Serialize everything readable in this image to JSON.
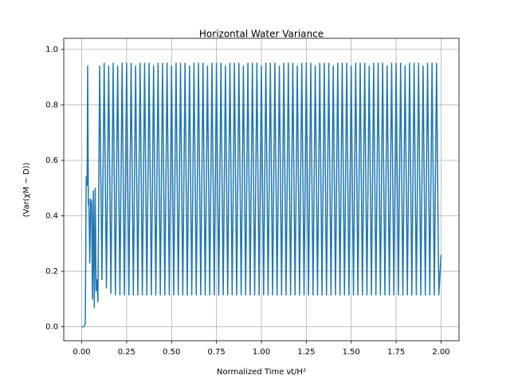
{
  "chart_data": {
    "type": "line",
    "title": "Horizontal Water Variance",
    "x_label": "Normalized Time νt/H²",
    "y_label": "⟨Var(χM − D)⟩",
    "color": "#1f77b4",
    "grid": true,
    "xlim": [
      -0.1,
      2.1
    ],
    "ylim": [
      -0.05,
      1.04
    ],
    "xticks": [
      {
        "value": 0,
        "label": "0.00"
      },
      {
        "value": 0.25,
        "label": "0.25"
      },
      {
        "value": 0.5,
        "label": "0.50"
      },
      {
        "value": 0.75,
        "label": "0.75"
      },
      {
        "value": 1,
        "label": "1.00"
      },
      {
        "value": 1.25,
        "label": "1.25"
      },
      {
        "value": 1.5,
        "label": "1.50"
      },
      {
        "value": 1.75,
        "label": "1.75"
      },
      {
        "value": 2,
        "label": "2.00"
      }
    ],
    "yticks": [
      {
        "value": 0,
        "label": "0.0"
      },
      0.2,
      0.4,
      0.6,
      0.8,
      {
        "value": 1,
        "label": "1.0"
      }
    ],
    "x": [
      0,
      0.01,
      0.02,
      0.025,
      0.03,
      0.033,
      0.037,
      0.04,
      0.045,
      0.05,
      0.055,
      0.06,
      0.065,
      0.07,
      0.075,
      0.08,
      0.085,
      0.09,
      0.095,
      0.1,
      0.1125,
      0.125,
      0.1375,
      0.15,
      0.1625,
      0.175,
      0.1875,
      0.2,
      0.2125,
      0.225,
      0.2375,
      0.25,
      0.2625,
      0.275,
      0.2875,
      0.3,
      0.3125,
      0.325,
      0.3375,
      0.35,
      0.3625,
      0.375,
      0.3875,
      0.4,
      0.4125,
      0.425,
      0.4375,
      0.45,
      0.4625,
      0.475,
      0.4875,
      0.5,
      0.5125,
      0.525,
      0.5375,
      0.55,
      0.5625,
      0.575,
      0.5875,
      0.6,
      0.6125,
      0.625,
      0.6375,
      0.65,
      0.6625,
      0.675,
      0.6875,
      0.7,
      0.7125,
      0.725,
      0.7375,
      0.75,
      0.7625,
      0.775,
      0.7875,
      0.8,
      0.8125,
      0.825,
      0.8375,
      0.85,
      0.8625,
      0.875,
      0.8875,
      0.9,
      0.9125,
      0.925,
      0.9375,
      0.95,
      0.9625,
      0.975,
      0.9875,
      1.0,
      1.0125,
      1.025,
      1.0375,
      1.05,
      1.0625,
      1.075,
      1.0875,
      1.1,
      1.1125,
      1.125,
      1.1375,
      1.15,
      1.1625,
      1.175,
      1.1875,
      1.2,
      1.2125,
      1.225,
      1.2375,
      1.25,
      1.2625,
      1.275,
      1.2875,
      1.3,
      1.3125,
      1.325,
      1.3375,
      1.35,
      1.3625,
      1.375,
      1.3875,
      1.4,
      1.4125,
      1.425,
      1.4375,
      1.45,
      1.4625,
      1.475,
      1.4875,
      1.5,
      1.5125,
      1.525,
      1.5375,
      1.55,
      1.5625,
      1.575,
      1.5875,
      1.6,
      1.6125,
      1.625,
      1.6375,
      1.65,
      1.6625,
      1.675,
      1.6875,
      1.7,
      1.7125,
      1.725,
      1.7375,
      1.75,
      1.7625,
      1.775,
      1.7875,
      1.8,
      1.8125,
      1.825,
      1.8375,
      1.85,
      1.8625,
      1.875,
      1.8875,
      1.9,
      1.9125,
      1.925,
      1.9375,
      1.95,
      1.9625,
      1.975,
      1.9875,
      2.0
    ],
    "values": [
      0,
      0,
      0.01,
      0.54,
      0.51,
      0.94,
      0.44,
      0.46,
      0.23,
      0.46,
      0.45,
      0.1,
      0.49,
      0.07,
      0.5,
      0.13,
      0.17,
      0.09,
      0.5,
      0.94,
      0.17,
      0.95,
      0.14,
      0.94,
      0.12,
      0.95,
      0.115,
      0.94,
      0.115,
      0.95,
      0.115,
      0.95,
      0.115,
      0.95,
      0.115,
      0.94,
      0.115,
      0.95,
      0.115,
      0.95,
      0.115,
      0.95,
      0.115,
      0.94,
      0.115,
      0.95,
      0.115,
      0.95,
      0.115,
      0.95,
      0.115,
      0.94,
      0.115,
      0.95,
      0.115,
      0.95,
      0.115,
      0.95,
      0.115,
      0.94,
      0.115,
      0.95,
      0.115,
      0.95,
      0.115,
      0.95,
      0.115,
      0.94,
      0.115,
      0.95,
      0.115,
      0.95,
      0.115,
      0.95,
      0.115,
      0.94,
      0.115,
      0.95,
      0.115,
      0.95,
      0.115,
      0.95,
      0.115,
      0.94,
      0.115,
      0.95,
      0.115,
      0.95,
      0.115,
      0.95,
      0.115,
      0.94,
      0.115,
      0.95,
      0.115,
      0.95,
      0.115,
      0.95,
      0.115,
      0.94,
      0.115,
      0.95,
      0.115,
      0.95,
      0.115,
      0.95,
      0.115,
      0.94,
      0.115,
      0.95,
      0.115,
      0.95,
      0.115,
      0.95,
      0.115,
      0.94,
      0.115,
      0.95,
      0.115,
      0.95,
      0.115,
      0.95,
      0.115,
      0.94,
      0.115,
      0.95,
      0.115,
      0.95,
      0.115,
      0.95,
      0.115,
      0.94,
      0.115,
      0.95,
      0.115,
      0.95,
      0.115,
      0.95,
      0.115,
      0.94,
      0.115,
      0.95,
      0.115,
      0.95,
      0.115,
      0.95,
      0.115,
      0.94,
      0.115,
      0.95,
      0.115,
      0.95,
      0.115,
      0.95,
      0.115,
      0.94,
      0.115,
      0.95,
      0.115,
      0.95,
      0.115,
      0.95,
      0.115,
      0.94,
      0.115,
      0.95,
      0.115,
      0.95,
      0.115,
      0.95,
      0.115,
      0.26
    ]
  }
}
